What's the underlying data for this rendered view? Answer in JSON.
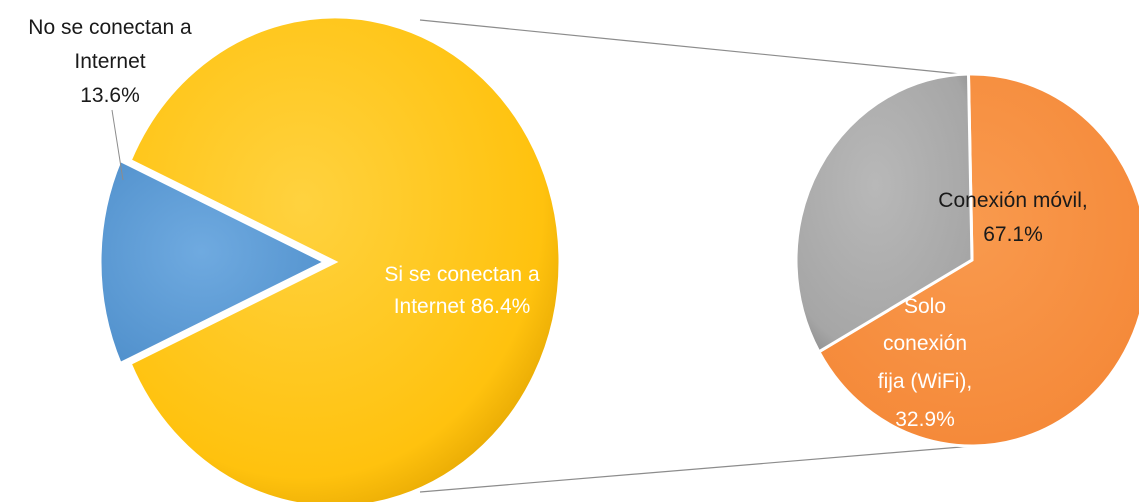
{
  "colors": {
    "yellow": "#FFC20E",
    "blue": "#5B9BD5",
    "orange": "#F58A3A",
    "gray": "#A6A6A6",
    "connector": "#8C8C8C"
  },
  "chart_data": [
    {
      "type": "pie",
      "slices": [
        {
          "label": "No se conectan a Internet",
          "value": 13.6,
          "color": "blue"
        },
        {
          "label": "Si se conectan a Internet",
          "value": 86.4,
          "color": "yellow",
          "exploded_to": "detail"
        }
      ],
      "labels": {
        "no": {
          "line1": "No se conectan a",
          "line2": "Internet",
          "line3": "13.6%"
        },
        "yes": {
          "line1": "Si se conectan a",
          "line2": "Internet 86.4%"
        }
      }
    },
    {
      "type": "pie",
      "parent_slice": "Si se conectan a Internet",
      "slices": [
        {
          "label": "Conexión móvil",
          "value": 67.1,
          "color": "orange"
        },
        {
          "label": "Solo conexión fija (WiFi)",
          "value": 32.9,
          "color": "gray"
        }
      ],
      "labels": {
        "movil": {
          "line1": "Conexión móvil,",
          "line2": "67.1%"
        },
        "fija": {
          "line1": "Solo",
          "line2": "conexión",
          "line3": "fija (WiFi),",
          "line4": "32.9%"
        }
      }
    }
  ]
}
